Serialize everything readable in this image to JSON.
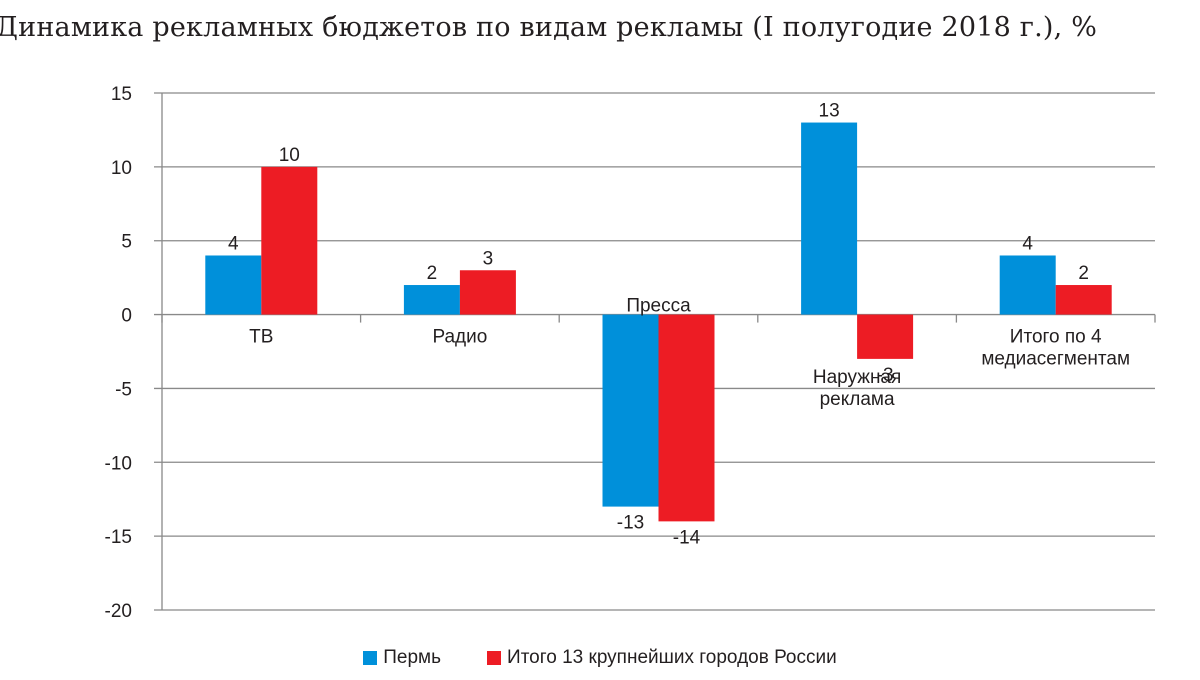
{
  "title": "Динамика рекламных бюджетов по видам рекламы (I полугодие 2018 г.), %",
  "colors": {
    "perm": "#0090da",
    "russia": "#ed1c24",
    "grid": "#898989",
    "text": "#231f20"
  },
  "chart_data": {
    "type": "bar",
    "title": "Динамика рекламных бюджетов по видам рекламы (I полугодие 2018 г.), %",
    "xlabel": "",
    "ylabel": "",
    "ylim": [
      -20,
      15
    ],
    "yticks": [
      15,
      10,
      5,
      0,
      -5,
      -10,
      -15,
      -20
    ],
    "grid": true,
    "legend_position": "bottom",
    "categories": [
      "ТВ",
      "Радио",
      "Пресса",
      "Наружная реклама",
      "Итого по 4 медиасегментам"
    ],
    "category_label_lines": [
      [
        "ТВ"
      ],
      [
        "Радио"
      ],
      [
        "Пресса"
      ],
      [
        "Наружная",
        "реклама"
      ],
      [
        "Итого по 4",
        "медиасегментам"
      ]
    ],
    "series": [
      {
        "name": "Пермь",
        "color": "#0090da",
        "values": [
          4,
          2,
          -13,
          13,
          4
        ]
      },
      {
        "name": "Итого 13 крупнейших городов России",
        "color": "#ed1c24",
        "values": [
          10,
          3,
          -14,
          -3,
          2
        ]
      }
    ]
  },
  "legend": [
    {
      "label": "Пермь",
      "color": "#0090da"
    },
    {
      "label": "Итого 13 крупнейших городов России",
      "color": "#ed1c24"
    }
  ]
}
